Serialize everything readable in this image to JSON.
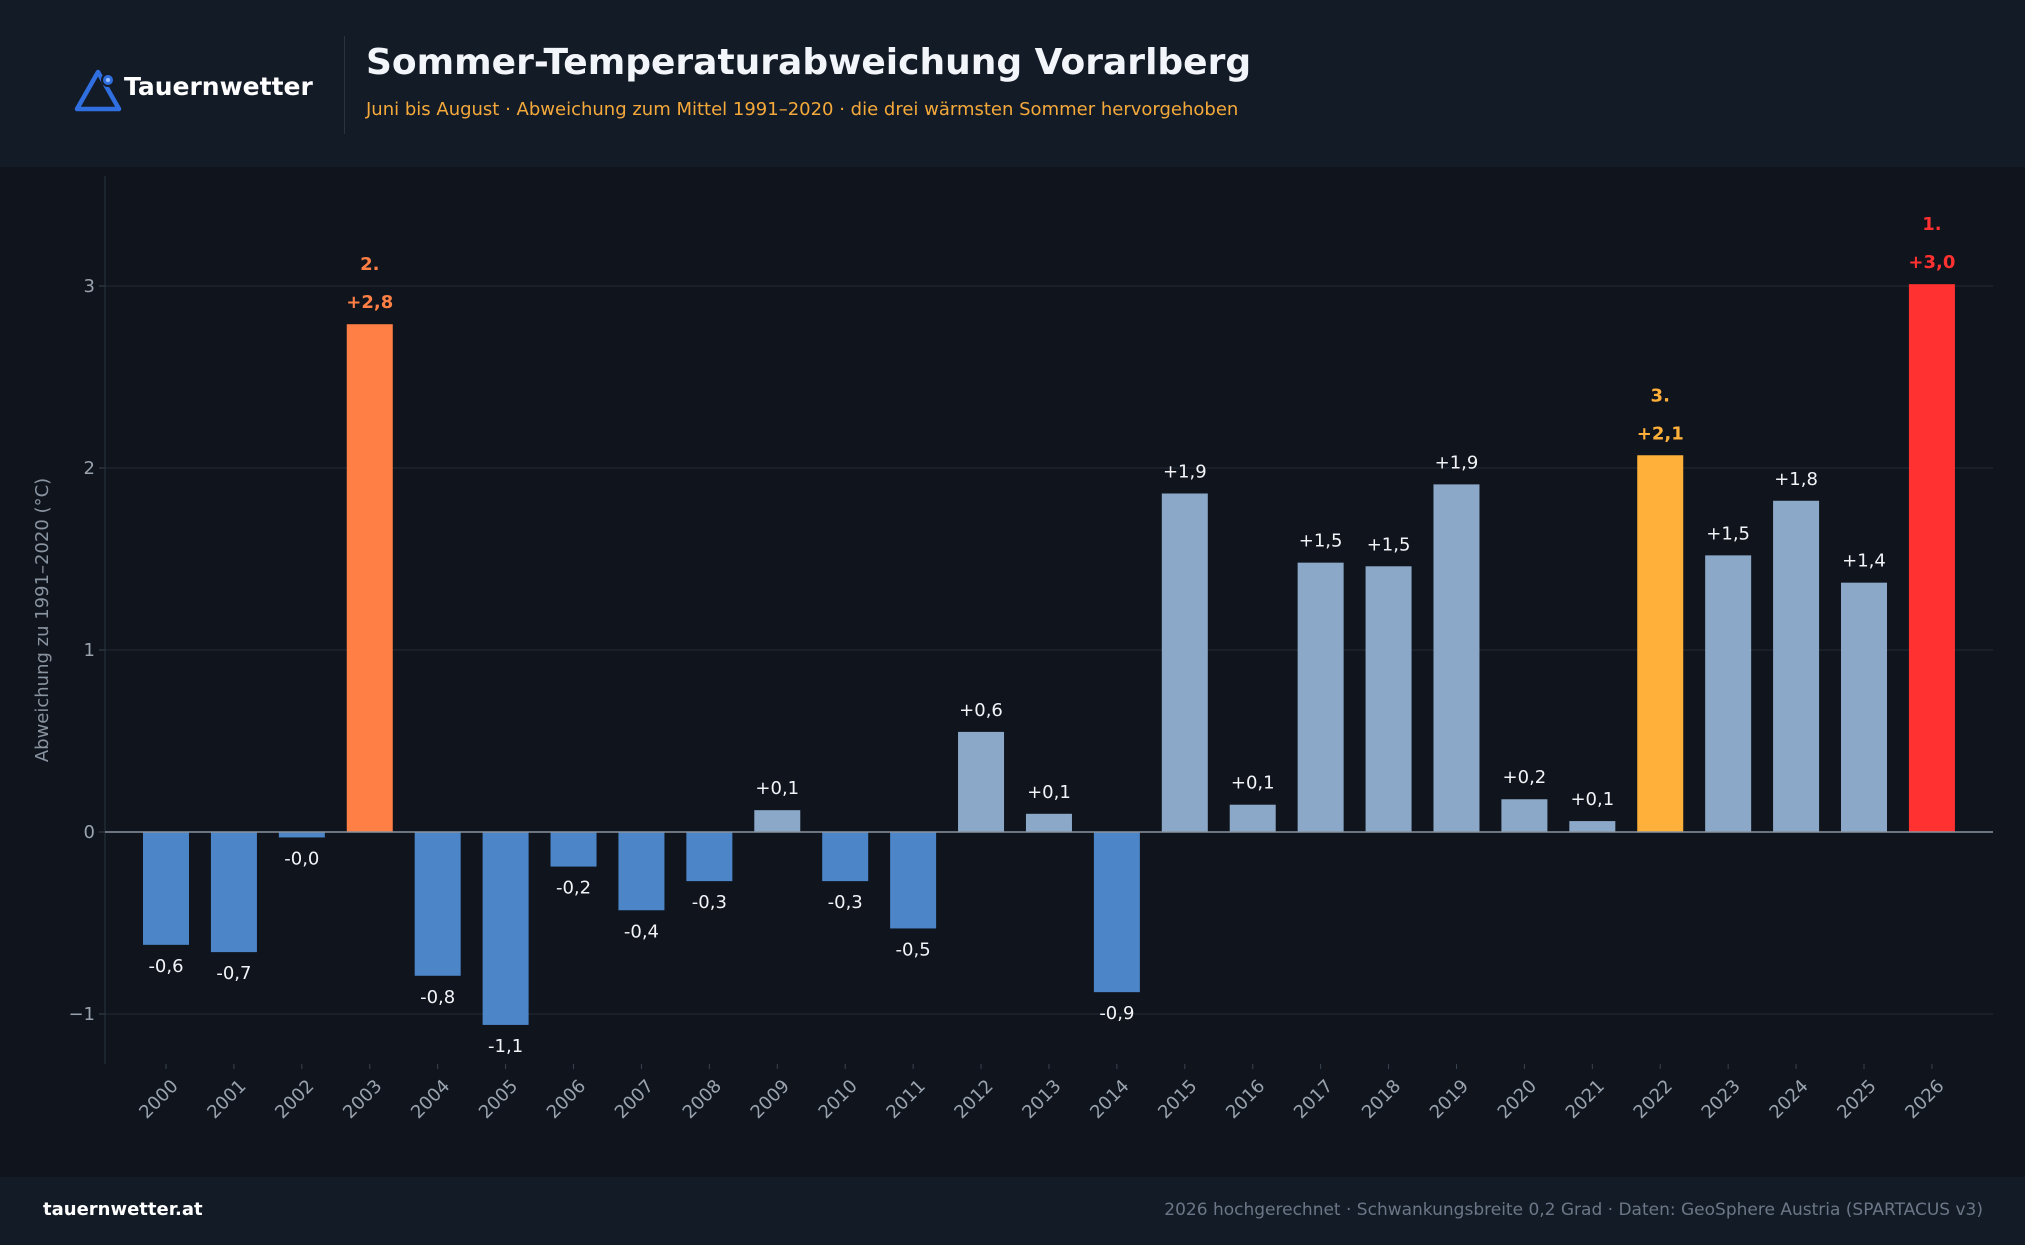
{
  "header": {
    "brand": "Tauernwetter",
    "title": "Sommer-Temperaturabweichung Vorarlberg",
    "subtitle": "Juni bis August · Abweichung zum Mittel 1991–2020 · die drei wärmsten Sommer hervorgehoben"
  },
  "footer": {
    "site": "tauernwetter.at",
    "note": "2026 hochgerechnet · Schwankungsbreite 0,2 Grad  ·  Daten: GeoSphere Austria (SPARTACUS v3)"
  },
  "colors": {
    "cold": "#4c86c8",
    "warm": "#8ba8c8",
    "rank1": "#ff3131",
    "rank2": "#ff7f45",
    "rank3": "#ffb03b",
    "accent": "#f5a93a",
    "logo": "#2f6fe0"
  },
  "chart_data": {
    "type": "bar",
    "ylabel": "Abweichung zu 1991–2020 (°C)",
    "ylim": [
      -1.27,
      3.62
    ],
    "yticks": [
      -1,
      0,
      1,
      2,
      3
    ],
    "grid": true,
    "categories": [
      "2000",
      "2001",
      "2002",
      "2003",
      "2004",
      "2005",
      "2006",
      "2007",
      "2008",
      "2009",
      "2010",
      "2011",
      "2012",
      "2013",
      "2014",
      "2015",
      "2016",
      "2017",
      "2018",
      "2019",
      "2020",
      "2021",
      "2022",
      "2023",
      "2024",
      "2025",
      "2026"
    ],
    "values": [
      -0.62,
      -0.66,
      -0.03,
      2.79,
      -0.79,
      -1.06,
      -0.19,
      -0.43,
      -0.27,
      0.12,
      -0.27,
      -0.53,
      0.55,
      0.1,
      -0.88,
      1.86,
      0.15,
      1.48,
      1.46,
      1.91,
      0.18,
      0.06,
      2.07,
      1.52,
      1.82,
      1.37,
      3.01
    ],
    "labels": [
      "-0,6",
      "-0,7",
      "-0,0",
      "+2,8",
      "-0,8",
      "-1,1",
      "-0,2",
      "-0,4",
      "-0,3",
      "+0,1",
      "-0,3",
      "-0,5",
      "+0,6",
      "+0,1",
      "-0,9",
      "+1,9",
      "+0,1",
      "+1,5",
      "+1,5",
      "+1,9",
      "+0,2",
      "+0,1",
      "+2,1",
      "+1,5",
      "+1,8",
      "+1,4",
      "+3,0"
    ],
    "highlights": [
      {
        "year": "2026",
        "rank": "1."
      },
      {
        "year": "2003",
        "rank": "2."
      },
      {
        "year": "2022",
        "rank": "3."
      }
    ]
  }
}
